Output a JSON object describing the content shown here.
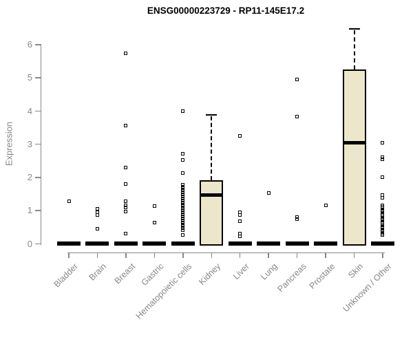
{
  "title": "ENSG00000223729 - RP11-145E17.2",
  "colors": {
    "box_fill": "#ECE6CB",
    "box_border": "#000000",
    "axis_gray": "#878787",
    "ink": "#000000",
    "background": "#FFFFFF"
  },
  "chart_data": {
    "type": "boxplot",
    "title": "ENSG00000223729 - RP11-145E17.2",
    "xlabel": "",
    "ylabel": "Expression",
    "ylim": [
      0,
      6.6
    ],
    "yticks": [
      0,
      1,
      2,
      3,
      4,
      5,
      6
    ],
    "grid": false,
    "legend": false,
    "categories": [
      "Bladder",
      "Brain",
      "Breast",
      "Gastric",
      "Hematopoietic cells",
      "Kidney",
      "Liver",
      "Lung",
      "Pancreas",
      "Prostate",
      "Skin",
      "Unknown / Other"
    ],
    "series": [
      {
        "category": "Bladder",
        "q1": 0,
        "median": 0,
        "q3": 0,
        "whisker_low": 0,
        "whisker_high": 0,
        "outliers": [
          1.28
        ]
      },
      {
        "category": "Brain",
        "q1": 0,
        "median": 0,
        "q3": 0,
        "whisker_low": 0,
        "whisker_high": 0,
        "outliers": [
          1.04,
          0.95,
          0.87,
          0.44
        ]
      },
      {
        "category": "Breast",
        "q1": 0,
        "median": 0,
        "q3": 0,
        "whisker_low": 0,
        "whisker_high": 0,
        "outliers": [
          5.74,
          3.55,
          2.3,
          1.8,
          1.28,
          1.16,
          1.08,
          0.97,
          0.31
        ]
      },
      {
        "category": "Gastric",
        "q1": 0,
        "median": 0,
        "q3": 0,
        "whisker_low": 0,
        "whisker_high": 0,
        "outliers": [
          1.12,
          0.64
        ]
      },
      {
        "category": "Hematopoietic cells",
        "q1": 0,
        "median": 0,
        "q3": 0,
        "whisker_low": 0,
        "whisker_high": 0,
        "outliers": [
          3.98,
          2.7,
          2.51,
          2.12,
          1.78,
          1.72,
          1.66,
          1.6,
          1.54,
          1.48,
          1.42,
          1.36,
          1.3,
          1.24,
          1.18,
          1.12,
          1.06,
          1.0,
          0.94,
          0.88,
          0.82,
          0.76,
          0.7,
          0.64,
          0.58,
          0.52,
          0.46,
          0.4,
          0.25
        ]
      },
      {
        "category": "Kidney",
        "q1": 0,
        "median": 1.47,
        "q3": 1.91,
        "whisker_low": 0,
        "whisker_high": 3.88,
        "outliers": []
      },
      {
        "category": "Liver",
        "q1": 0,
        "median": 0,
        "q3": 0,
        "whisker_low": 0,
        "whisker_high": 0,
        "outliers": [
          3.25,
          0.95,
          0.85,
          0.68,
          0.31,
          0.21
        ]
      },
      {
        "category": "Lung",
        "q1": 0,
        "median": 0,
        "q3": 0,
        "whisker_low": 0,
        "whisker_high": 0,
        "outliers": [
          1.53
        ]
      },
      {
        "category": "Pancreas",
        "q1": 0,
        "median": 0,
        "q3": 0,
        "whisker_low": 0,
        "whisker_high": 0,
        "outliers": [
          4.95,
          3.83,
          0.8,
          0.74
        ]
      },
      {
        "category": "Prostate",
        "q1": 0,
        "median": 0,
        "q3": 0,
        "whisker_low": 0,
        "whisker_high": 0,
        "outliers": [
          1.16
        ]
      },
      {
        "category": "Skin",
        "q1": 0,
        "median": 3.03,
        "q3": 5.25,
        "whisker_low": 0,
        "whisker_high": 6.47,
        "outliers": []
      },
      {
        "category": "Unknown / Other",
        "q1": 0,
        "median": 0,
        "q3": 0,
        "whisker_low": 0,
        "whisker_high": 0,
        "outliers": [
          3.03,
          2.6,
          2.54,
          2.01,
          1.47,
          1.38,
          1.16,
          1.11,
          1.06,
          1.01,
          0.96,
          0.91,
          0.86,
          0.81,
          0.76,
          0.71,
          0.66,
          0.61,
          0.56,
          0.51,
          0.46,
          0.41,
          0.36,
          0.31,
          0.25
        ]
      }
    ]
  }
}
